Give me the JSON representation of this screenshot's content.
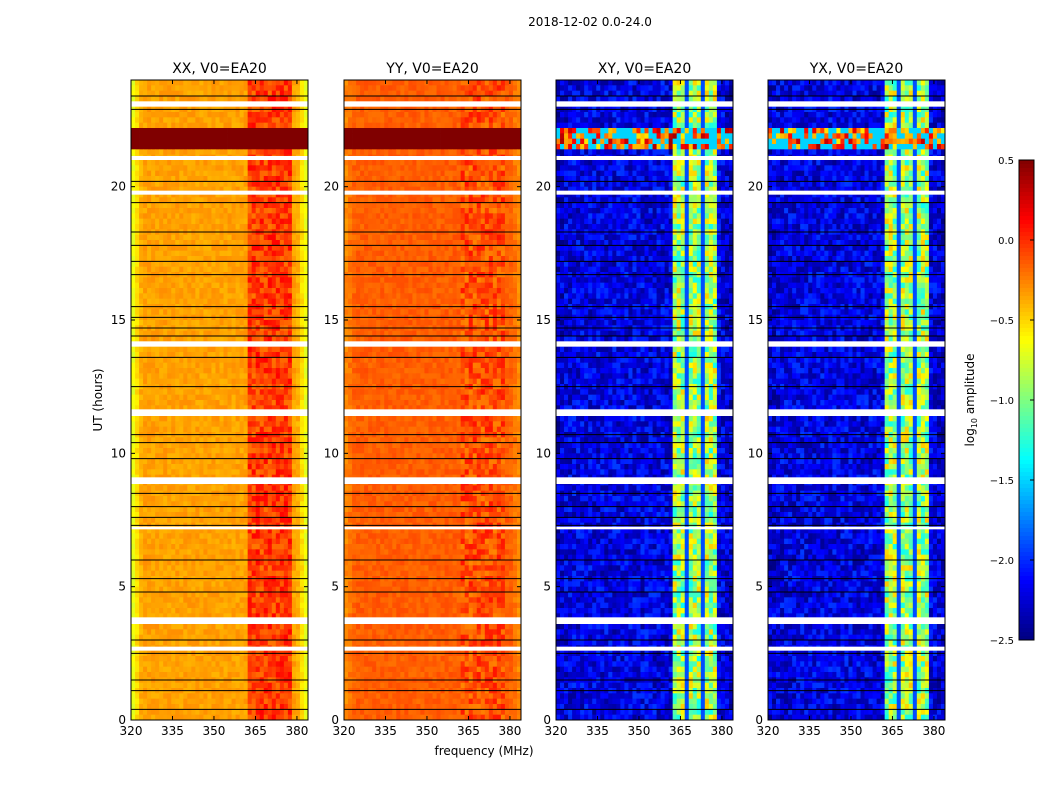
{
  "chart_data": {
    "type": "heatmap",
    "title": "2018-12-02 0.0-24.0",
    "xlabel": "frequency (MHz)",
    "ylabel": "UT (hours)",
    "xlim": [
      320,
      384
    ],
    "ylim": [
      0,
      24
    ],
    "xticks": [
      320,
      335,
      350,
      365,
      380
    ],
    "yticks": [
      0,
      5,
      10,
      15,
      20
    ],
    "colorbar": {
      "label": "log10 amplitude",
      "label_main": "log",
      "label_sub": "10",
      "label_rest": " amplitude",
      "range": [
        -2.5,
        0.5
      ],
      "ticks": [
        "0.5",
        "0.0",
        "−0.5",
        "−1.0",
        "−1.5",
        "−2.0",
        "−2.5"
      ],
      "tick_values": [
        0.5,
        0.0,
        -0.5,
        -1.0,
        -1.5,
        -2.0,
        -2.5
      ],
      "colormap": "jet"
    },
    "panels": [
      {
        "title": "XX, V0=EA20",
        "base_level": -0.35,
        "edge_level": -0.75,
        "rfi_level": -0.05,
        "show_ylabel": true
      },
      {
        "title": "YY, V0=EA20",
        "base_level": -0.15,
        "edge_level": -0.3,
        "rfi_level": -0.1,
        "show_ylabel": false
      },
      {
        "title": "XY, V0=EA20",
        "base_level": -2.2,
        "edge_level": -2.3,
        "rfi_level": -0.9,
        "show_ylabel": false
      },
      {
        "title": "YX, V0=EA20",
        "base_level": -2.2,
        "edge_level": -2.3,
        "rfi_level": -0.9,
        "show_ylabel": false
      }
    ],
    "rfi_band_mhz": [
      362,
      378
    ],
    "strong_rfi_hours": [
      [
        21.4,
        22.2
      ]
    ],
    "blank_hours": [
      [
        23.0,
        23.2
      ],
      [
        21.0,
        21.15
      ],
      [
        19.7,
        19.85
      ],
      [
        14.0,
        14.2
      ],
      [
        11.4,
        11.65
      ],
      [
        8.85,
        9.1
      ],
      [
        3.6,
        3.85
      ],
      [
        2.6,
        2.75
      ],
      [
        7.15,
        7.25
      ]
    ],
    "flag_line_hours": [
      23.4,
      22.9,
      20.2,
      19.4,
      18.3,
      17.8,
      17.2,
      16.7,
      15.5,
      15.1,
      14.7,
      14.4,
      13.6,
      12.5,
      10.7,
      10.4,
      9.8,
      8.5,
      8.0,
      7.6,
      7.3,
      6.0,
      5.3,
      4.8,
      3.0,
      2.5,
      1.5,
      1.1,
      0.4
    ]
  }
}
